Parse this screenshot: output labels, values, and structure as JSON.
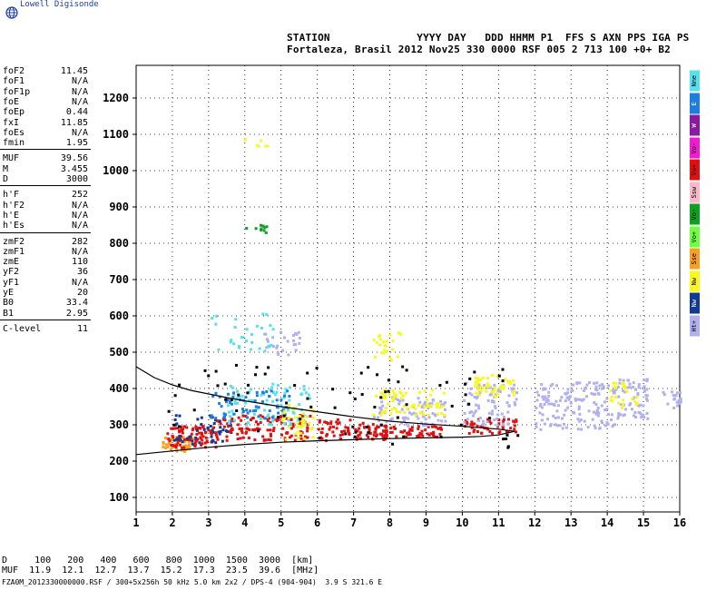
{
  "brand": "Lowell Digisonde",
  "header": {
    "line1": "STATION              YYYY DAY   DDD HHMM P1  FFS S AXN PPS IGA PS",
    "line2": "Fortaleza, Brasil 2012 Nov25 330 0000 RSF 005 2 713 100 +0+ B2"
  },
  "params": [
    [
      {
        "k": "foF2",
        "v": "11.45"
      },
      {
        "k": "foF1",
        "v": "N/A"
      },
      {
        "k": "foF1p",
        "v": "N/A"
      },
      {
        "k": "foE",
        "v": "N/A"
      },
      {
        "k": "foEp",
        "v": "0.44"
      },
      {
        "k": "fxI",
        "v": "11.85"
      },
      {
        "k": "foEs",
        "v": "N/A"
      },
      {
        "k": "fmin",
        "v": "1.95"
      }
    ],
    [
      {
        "k": "MUF",
        "v": "39.56"
      },
      {
        "k": "M",
        "v": "3.455"
      },
      {
        "k": "D",
        "v": "3000"
      }
    ],
    [
      {
        "k": "h'F",
        "v": "252"
      },
      {
        "k": "h'F2",
        "v": "N/A"
      },
      {
        "k": "h'E",
        "v": "N/A"
      },
      {
        "k": "h'Es",
        "v": "N/A"
      }
    ],
    [
      {
        "k": "zmF2",
        "v": "282"
      },
      {
        "k": "zmF1",
        "v": "N/A"
      },
      {
        "k": "zmE",
        "v": "110"
      },
      {
        "k": "yF2",
        "v": "36"
      },
      {
        "k": "yF1",
        "v": "N/A"
      },
      {
        "k": "yE",
        "v": "20"
      },
      {
        "k": "B0",
        "v": "33.4"
      },
      {
        "k": "B1",
        "v": "2.95"
      }
    ],
    [
      {
        "k": "C-level",
        "v": "11"
      }
    ]
  ],
  "legend": [
    {
      "label": "Nne",
      "color": "#55e0f0"
    },
    {
      "label": "E",
      "color": "#1e7ee0"
    },
    {
      "label": "W",
      "color": "#8a1aa0"
    },
    {
      "label": "Vo-",
      "color": "#f01ad0"
    },
    {
      "label": "Vo+",
      "color": "#e01010"
    },
    {
      "label": "Ssw",
      "color": "#f8b8c8"
    },
    {
      "label": "Vo-",
      "color": "#10a020"
    },
    {
      "label": "Vo+",
      "color": "#70ff40"
    },
    {
      "label": "Sse",
      "color": "#f8a020"
    },
    {
      "label": "Nw",
      "color": "#f8f820"
    },
    {
      "label": "Nw",
      "color": "#103a90"
    },
    {
      "label": "Ht+",
      "color": "#b0b0f0"
    }
  ],
  "footer": {
    "line1": "D     100   200   400   600   800  1000  1500  3000  [km]",
    "line2": "MUF  11.9  12.1  12.7  13.7  15.2  17.3  23.5  39.6  [MHz]",
    "file": "FZA0M_2012330000000.RSF / 300+5x256h 50 kHz 5.0 km 2x2 / DPS-4 (904-904)  3.9 S 321.6 E"
  },
  "chart_data": {
    "type": "scatter",
    "xlim": [
      1,
      16
    ],
    "ylim": [
      60,
      1290
    ],
    "xticks": [
      1,
      2,
      3,
      4,
      5,
      6,
      7,
      8,
      9,
      10,
      11,
      12,
      13,
      14,
      15,
      16
    ],
    "yticks": [
      100,
      200,
      300,
      400,
      500,
      600,
      700,
      800,
      900,
      1000,
      1100,
      1200
    ],
    "grid": true,
    "curves": [
      {
        "x": [
          1.0,
          1.5,
          2,
          2.5,
          3,
          3.5,
          4,
          5,
          6,
          7,
          8,
          9,
          10,
          10.5,
          11,
          11.45
        ],
        "y": [
          460,
          430,
          410,
          395,
          385,
          375,
          366,
          350,
          336,
          322,
          310,
          302,
          296,
          292,
          288,
          282
        ]
      },
      {
        "x": [
          1.0,
          2,
          3,
          4,
          5,
          6,
          7,
          8,
          9,
          10,
          10.5,
          11,
          11.45
        ],
        "y": [
          218,
          228,
          238,
          246,
          252,
          256,
          259,
          262,
          264,
          266,
          268,
          272,
          282
        ]
      }
    ],
    "clusters": [
      {
        "x": [
          1.7,
          2.6
        ],
        "y": [
          230,
          270
        ],
        "color": "#f8a020",
        "n": 60
      },
      {
        "x": [
          1.8,
          3.2
        ],
        "y": [
          240,
          300
        ],
        "color": "#e01010",
        "n": 80
      },
      {
        "x": [
          2.0,
          3.6
        ],
        "y": [
          250,
          330
        ],
        "color": "#103a90",
        "n": 50
      },
      {
        "x": [
          3.0,
          5.8
        ],
        "y": [
          260,
          330
        ],
        "color": "#e01010",
        "n": 120
      },
      {
        "x": [
          3.5,
          5.8
        ],
        "y": [
          300,
          420
        ],
        "color": "#55e0f0",
        "n": 90
      },
      {
        "x": [
          3.0,
          5.2
        ],
        "y": [
          320,
          400
        ],
        "color": "#1e7ee0",
        "n": 60
      },
      {
        "x": [
          5.0,
          5.9
        ],
        "y": [
          260,
          360
        ],
        "color": "#f8f820",
        "n": 40
      },
      {
        "x": [
          6.0,
          6.9
        ],
        "y": [
          260,
          320
        ],
        "color": "#e01010",
        "n": 40
      },
      {
        "x": [
          7.0,
          7.9
        ],
        "y": [
          260,
          310
        ],
        "color": "#e01010",
        "n": 40
      },
      {
        "x": [
          7.5,
          9.5
        ],
        "y": [
          270,
          300
        ],
        "color": "#e01010",
        "n": 70
      },
      {
        "x": [
          7.5,
          9.5
        ],
        "y": [
          300,
          380
        ],
        "color": "#b0b0f0",
        "n": 80
      },
      {
        "x": [
          7.5,
          9.5
        ],
        "y": [
          330,
          400
        ],
        "color": "#f8f820",
        "n": 70
      },
      {
        "x": [
          10.0,
          11.5
        ],
        "y": [
          280,
          320
        ],
        "color": "#e01010",
        "n": 50
      },
      {
        "x": [
          10.0,
          11.5
        ],
        "y": [
          300,
          420
        ],
        "color": "#b0b0f0",
        "n": 80
      },
      {
        "x": [
          10.3,
          11.4
        ],
        "y": [
          380,
          440
        ],
        "color": "#f8f820",
        "n": 50
      },
      {
        "x": [
          12.0,
          14.2
        ],
        "y": [
          290,
          420
        ],
        "color": "#b0b0f0",
        "n": 150
      },
      {
        "x": [
          14.2,
          15.1
        ],
        "y": [
          320,
          430
        ],
        "color": "#b0b0f0",
        "n": 60
      },
      {
        "x": [
          14.0,
          14.8
        ],
        "y": [
          340,
          420
        ],
        "color": "#f8f820",
        "n": 25
      },
      {
        "x": [
          15.5,
          16.0
        ],
        "y": [
          350,
          400
        ],
        "color": "#b0b0f0",
        "n": 20
      },
      {
        "x": [
          3.0,
          4.8
        ],
        "y": [
          500,
          620
        ],
        "color": "#55e0f0",
        "n": 30
      },
      {
        "x": [
          4.5,
          5.5
        ],
        "y": [
          490,
          560
        ],
        "color": "#b0b0f0",
        "n": 25
      },
      {
        "x": [
          7.5,
          8.3
        ],
        "y": [
          480,
          560
        ],
        "color": "#f8f820",
        "n": 25
      },
      {
        "x": [
          4.0,
          4.6
        ],
        "y": [
          830,
          860
        ],
        "color": "#10a020",
        "n": 10
      },
      {
        "x": [
          3.7,
          4.6
        ],
        "y": [
          1070,
          1090
        ],
        "color": "#f8f820",
        "n": 6
      },
      {
        "x": [
          1.8,
          11.5
        ],
        "y": [
          240,
          470
        ],
        "color": "#000000",
        "n": 80
      }
    ]
  }
}
